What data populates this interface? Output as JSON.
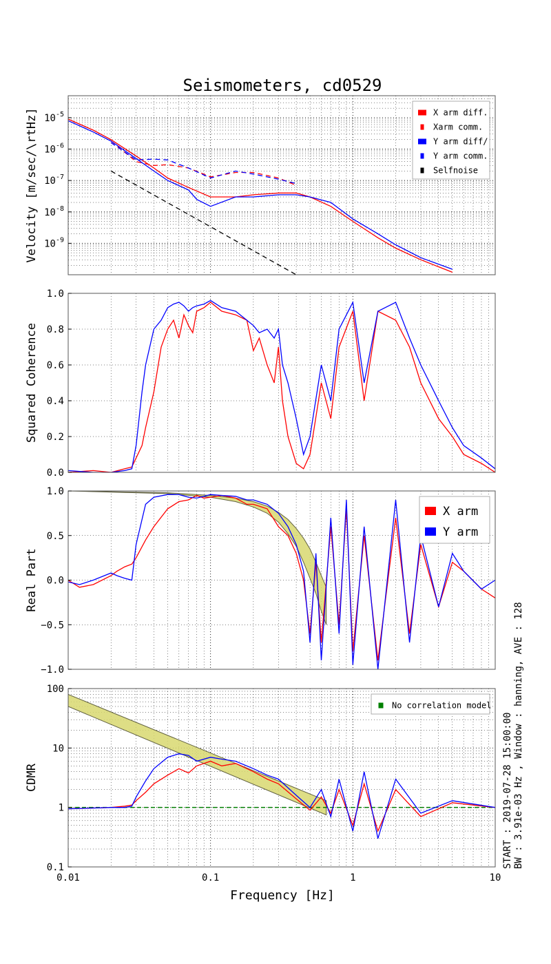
{
  "figure": {
    "title": "Seismometers, cd0529",
    "xlabel": "Frequency [Hz]",
    "side_text_1": "START : 2019-07-28 15:00:00",
    "side_text_2": "BW : 3.91e-03 Hz , Window : hanning, AVE : 128"
  },
  "colors": {
    "x": "#ff0000",
    "y": "#0000ff",
    "self": "#000000",
    "model": "#008000",
    "band": "#d8d870",
    "band_edge": "#606040"
  },
  "chart_data": [
    {
      "type": "line",
      "id": "velocity",
      "ylabel": "Velocity [m/sec/\\rtHz]",
      "xscale": "log",
      "yscale": "log",
      "xlim": [
        0.01,
        10
      ],
      "ylim": [
        1e-10,
        5e-05
      ],
      "yticks": [
        1e-09,
        1e-08,
        1e-07,
        1e-06,
        1e-05
      ],
      "yticklabels": [
        "10^-9",
        "10^-8",
        "10^-7",
        "10^-6",
        "10^-5"
      ],
      "legend": {
        "placement": "top-right",
        "entries": [
          "X arm diff.",
          "Xarm comm.",
          "Y arm diff/",
          "Y arm comm.",
          "Selfnoise"
        ]
      },
      "series": [
        {
          "name": "X arm diff.",
          "color": "x",
          "dash": false,
          "x": [
            0.01,
            0.015,
            0.02,
            0.03,
            0.04,
            0.05,
            0.07,
            0.1,
            0.15,
            0.2,
            0.3,
            0.4,
            0.5,
            0.7,
            1.0,
            1.5,
            2.0,
            3.0,
            5.0
          ],
          "y": [
            9e-06,
            4e-06,
            2e-06,
            6e-07,
            2.5e-07,
            1.2e-07,
            6e-08,
            3e-08,
            3e-08,
            3.5e-08,
            4e-08,
            4e-08,
            3e-08,
            1.5e-08,
            5e-09,
            1.5e-09,
            7e-10,
            3e-10,
            1.2e-10
          ]
        },
        {
          "name": "Xarm comm.",
          "color": "x",
          "dash": true,
          "x": [
            0.02,
            0.03,
            0.04,
            0.05,
            0.07,
            0.1,
            0.15,
            0.2,
            0.3,
            0.4
          ],
          "y": [
            1.8e-06,
            4e-07,
            3e-07,
            3.2e-07,
            2.5e-07,
            1.3e-07,
            1.8e-07,
            1.8e-07,
            1.2e-07,
            7e-08
          ]
        },
        {
          "name": "Y arm diff/",
          "color": "y",
          "dash": false,
          "x": [
            0.01,
            0.015,
            0.02,
            0.03,
            0.04,
            0.05,
            0.07,
            0.08,
            0.1,
            0.15,
            0.2,
            0.3,
            0.4,
            0.5,
            0.7,
            1.0,
            1.5,
            2.0,
            3.0,
            5.0
          ],
          "y": [
            8e-06,
            3.5e-06,
            1.8e-06,
            5e-07,
            2e-07,
            1e-07,
            5e-08,
            2.5e-08,
            1.5e-08,
            3e-08,
            3e-08,
            3.5e-08,
            3.5e-08,
            3e-08,
            2e-08,
            6e-09,
            2e-09,
            9e-10,
            3.5e-10,
            1.5e-10
          ]
        },
        {
          "name": "Y arm comm.",
          "color": "y",
          "dash": true,
          "x": [
            0.02,
            0.03,
            0.04,
            0.05,
            0.07,
            0.1,
            0.15,
            0.2,
            0.3,
            0.4
          ],
          "y": [
            1.6e-06,
            4.5e-07,
            4.8e-07,
            4.5e-07,
            2.5e-07,
            1.2e-07,
            2e-07,
            1.6e-07,
            1.1e-07,
            8e-08
          ]
        },
        {
          "name": "Selfnoise",
          "color": "self",
          "dash": true,
          "x": [
            0.02,
            0.4
          ],
          "y": [
            2e-07,
            1e-10
          ]
        }
      ]
    },
    {
      "type": "line",
      "id": "coherence",
      "ylabel": "Squared Coherence",
      "xscale": "log",
      "yscale": "linear",
      "xlim": [
        0.01,
        10
      ],
      "ylim": [
        0,
        1
      ],
      "yticks": [
        0,
        0.2,
        0.4,
        0.6,
        0.8,
        1.0
      ],
      "yticklabels": [
        "0.0",
        "0.2",
        "0.4",
        "0.6",
        "0.8",
        "1.0"
      ],
      "series": [
        {
          "name": "X arm",
          "color": "x",
          "x": [
            0.01,
            0.015,
            0.02,
            0.025,
            0.028,
            0.03,
            0.033,
            0.035,
            0.04,
            0.045,
            0.05,
            0.055,
            0.06,
            0.065,
            0.07,
            0.075,
            0.08,
            0.09,
            0.1,
            0.12,
            0.15,
            0.18,
            0.2,
            0.22,
            0.25,
            0.28,
            0.3,
            0.32,
            0.35,
            0.4,
            0.45,
            0.5,
            0.6,
            0.7,
            0.8,
            1.0,
            1.2,
            1.5,
            2.0,
            2.5,
            3.0,
            4.0,
            5.0,
            6.0,
            8.0,
            10.0
          ],
          "y": [
            0.0,
            0.01,
            0.0,
            0.02,
            0.03,
            0.08,
            0.15,
            0.25,
            0.45,
            0.7,
            0.8,
            0.85,
            0.75,
            0.88,
            0.82,
            0.78,
            0.9,
            0.92,
            0.95,
            0.9,
            0.88,
            0.85,
            0.68,
            0.75,
            0.6,
            0.5,
            0.7,
            0.4,
            0.2,
            0.05,
            0.02,
            0.1,
            0.5,
            0.3,
            0.7,
            0.9,
            0.4,
            0.9,
            0.85,
            0.7,
            0.5,
            0.3,
            0.2,
            0.1,
            0.05,
            0.0
          ]
        },
        {
          "name": "Y arm",
          "color": "y",
          "x": [
            0.01,
            0.015,
            0.02,
            0.025,
            0.028,
            0.03,
            0.033,
            0.035,
            0.04,
            0.045,
            0.05,
            0.055,
            0.06,
            0.065,
            0.07,
            0.075,
            0.08,
            0.09,
            0.1,
            0.12,
            0.15,
            0.18,
            0.2,
            0.22,
            0.25,
            0.28,
            0.3,
            0.32,
            0.35,
            0.4,
            0.45,
            0.5,
            0.6,
            0.7,
            0.8,
            1.0,
            1.2,
            1.5,
            2.0,
            2.5,
            3.0,
            4.0,
            5.0,
            6.0,
            8.0,
            10.0
          ],
          "y": [
            0.01,
            0.0,
            0.0,
            0.01,
            0.02,
            0.15,
            0.45,
            0.6,
            0.8,
            0.85,
            0.92,
            0.94,
            0.95,
            0.93,
            0.9,
            0.92,
            0.93,
            0.94,
            0.96,
            0.92,
            0.9,
            0.85,
            0.82,
            0.78,
            0.8,
            0.75,
            0.8,
            0.6,
            0.5,
            0.3,
            0.1,
            0.2,
            0.6,
            0.4,
            0.8,
            0.95,
            0.5,
            0.9,
            0.95,
            0.75,
            0.6,
            0.4,
            0.25,
            0.15,
            0.08,
            0.02
          ]
        }
      ]
    },
    {
      "type": "line",
      "id": "real-part",
      "ylabel": "Real Part",
      "xscale": "log",
      "yscale": "linear",
      "xlim": [
        0.01,
        10
      ],
      "ylim": [
        -1,
        1
      ],
      "yticks": [
        -1,
        -0.5,
        0,
        0.5,
        1
      ],
      "yticklabels": [
        "−1.0",
        "−0.5",
        "0.0",
        "0.5",
        "1.0"
      ],
      "legend": {
        "placement": "top-right",
        "entries": [
          "X arm",
          "Y arm"
        ]
      },
      "band": {
        "x": [
          0.01,
          0.05,
          0.1,
          0.15,
          0.2,
          0.25,
          0.3,
          0.35,
          0.4,
          0.45,
          0.5,
          0.55,
          0.6,
          0.65
        ],
        "upper": [
          1.0,
          0.98,
          0.95,
          0.92,
          0.88,
          0.83,
          0.76,
          0.68,
          0.58,
          0.47,
          0.35,
          0.2,
          0.05,
          -0.08
        ],
        "lower": [
          1.0,
          0.97,
          0.93,
          0.88,
          0.82,
          0.75,
          0.65,
          0.52,
          0.38,
          0.2,
          0.02,
          -0.15,
          -0.35,
          -0.5
        ]
      },
      "series": [
        {
          "name": "X arm",
          "color": "x",
          "x": [
            0.01,
            0.012,
            0.015,
            0.02,
            0.022,
            0.025,
            0.028,
            0.03,
            0.035,
            0.04,
            0.05,
            0.06,
            0.07,
            0.08,
            0.09,
            0.1,
            0.12,
            0.15,
            0.18,
            0.2,
            0.25,
            0.3,
            0.35,
            0.4,
            0.45,
            0.5,
            0.55,
            0.6,
            0.7,
            0.8,
            0.9,
            1.0,
            1.2,
            1.5,
            2.0,
            2.5,
            3.0,
            4.0,
            5.0,
            6.0,
            8.0,
            10.0
          ],
          "y": [
            0.0,
            -0.08,
            -0.05,
            0.05,
            0.1,
            0.15,
            0.18,
            0.25,
            0.45,
            0.6,
            0.8,
            0.88,
            0.9,
            0.95,
            0.92,
            0.93,
            0.95,
            0.92,
            0.85,
            0.85,
            0.8,
            0.6,
            0.5,
            0.3,
            0.0,
            -0.6,
            0.2,
            -0.7,
            0.6,
            -0.5,
            0.8,
            -0.8,
            0.5,
            -0.9,
            0.7,
            -0.6,
            0.4,
            -0.3,
            0.2,
            0.1,
            -0.1,
            -0.2
          ]
        },
        {
          "name": "Y arm",
          "color": "y",
          "x": [
            0.01,
            0.012,
            0.015,
            0.02,
            0.022,
            0.025,
            0.028,
            0.03,
            0.035,
            0.04,
            0.05,
            0.06,
            0.07,
            0.08,
            0.09,
            0.1,
            0.12,
            0.15,
            0.18,
            0.2,
            0.25,
            0.3,
            0.35,
            0.4,
            0.45,
            0.5,
            0.55,
            0.6,
            0.7,
            0.8,
            0.9,
            1.0,
            1.2,
            1.5,
            2.0,
            2.5,
            3.0,
            4.0,
            5.0,
            6.0,
            8.0,
            10.0
          ],
          "y": [
            -0.02,
            -0.05,
            0.0,
            0.08,
            0.05,
            0.02,
            0.0,
            0.4,
            0.85,
            0.93,
            0.96,
            0.96,
            0.93,
            0.92,
            0.94,
            0.96,
            0.95,
            0.94,
            0.9,
            0.9,
            0.85,
            0.75,
            0.6,
            0.4,
            0.1,
            -0.7,
            0.3,
            -0.9,
            0.7,
            -0.6,
            0.9,
            -0.95,
            0.6,
            -1.0,
            0.9,
            -0.7,
            0.5,
            -0.3,
            0.3,
            0.1,
            -0.1,
            0.0
          ]
        }
      ]
    },
    {
      "type": "line",
      "id": "cdmr",
      "ylabel": "CDMR",
      "xscale": "log",
      "yscale": "log",
      "xlim": [
        0.01,
        10
      ],
      "ylim": [
        0.1,
        100
      ],
      "yticks": [
        0.1,
        1,
        10,
        100
      ],
      "yticklabels": [
        "0.1",
        "1",
        "10",
        "100"
      ],
      "xticks": [
        0.01,
        0.1,
        1,
        10
      ],
      "xticklabels": [
        "0.01",
        "0.1",
        "1",
        "10"
      ],
      "legend": {
        "placement": "top-right",
        "entries": [
          "No correlation model"
        ]
      },
      "band": {
        "x": [
          0.01,
          0.65
        ],
        "upper": [
          80,
          1.3
        ],
        "lower": [
          50,
          0.75
        ]
      },
      "reference": {
        "name": "No correlation model",
        "value": 1.0,
        "color": "model"
      },
      "series": [
        {
          "name": "X arm",
          "color": "x",
          "x": [
            0.01,
            0.02,
            0.025,
            0.028,
            0.03,
            0.035,
            0.04,
            0.05,
            0.06,
            0.07,
            0.08,
            0.1,
            0.12,
            0.15,
            0.2,
            0.25,
            0.3,
            0.4,
            0.5,
            0.6,
            0.7,
            0.8,
            1.0,
            1.2,
            1.5,
            2.0,
            3.0,
            5.0,
            10.0
          ],
          "y": [
            0.95,
            1.0,
            1.05,
            1.1,
            1.3,
            1.8,
            2.5,
            3.5,
            4.5,
            3.8,
            5.0,
            6.0,
            5.0,
            5.5,
            4.0,
            3.0,
            2.5,
            1.4,
            0.9,
            1.5,
            0.8,
            2.0,
            0.5,
            2.5,
            0.4,
            2.0,
            0.7,
            1.2,
            1.0
          ]
        },
        {
          "name": "Y arm",
          "color": "y",
          "x": [
            0.01,
            0.02,
            0.025,
            0.028,
            0.03,
            0.035,
            0.04,
            0.05,
            0.06,
            0.07,
            0.08,
            0.1,
            0.12,
            0.15,
            0.2,
            0.25,
            0.3,
            0.4,
            0.5,
            0.6,
            0.7,
            0.8,
            1.0,
            1.2,
            1.5,
            2.0,
            3.0,
            5.0,
            10.0
          ],
          "y": [
            0.95,
            1.0,
            1.0,
            1.05,
            1.5,
            2.8,
            4.5,
            7.0,
            8.0,
            7.5,
            6.0,
            7.0,
            6.5,
            6.0,
            4.5,
            3.5,
            3.0,
            1.6,
            1.0,
            2.0,
            0.7,
            3.0,
            0.4,
            4.0,
            0.3,
            3.0,
            0.8,
            1.3,
            1.0
          ]
        }
      ]
    }
  ]
}
